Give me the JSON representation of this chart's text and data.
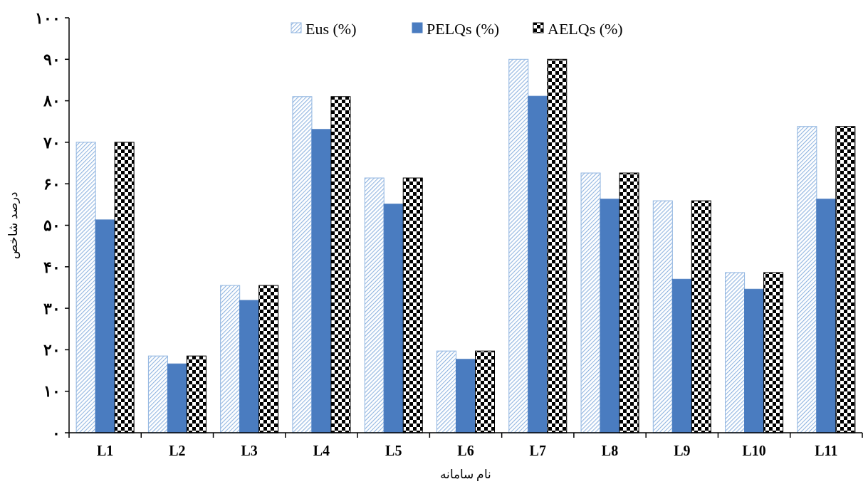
{
  "chart_data": {
    "type": "bar",
    "xlabel": "نام سامانه",
    "ylabel": "درصد شاخص",
    "categories": [
      "L1",
      "L2",
      "L3",
      "L4",
      "L5",
      "L6",
      "L7",
      "L8",
      "L9",
      "L10",
      "L11"
    ],
    "series": [
      {
        "name": "Eus (%)",
        "color": "#8fb4e0",
        "values": [
          70,
          18.5,
          35.5,
          81,
          61.4,
          19.7,
          90,
          62.6,
          55.9,
          38.6,
          73.8
        ]
      },
      {
        "name": "PELQs (%)",
        "color": "#4a7cc0",
        "values": [
          51.3,
          16.6,
          31.9,
          73.1,
          55.1,
          17.7,
          81.1,
          56.3,
          37,
          34.6,
          56.3
        ]
      },
      {
        "name": "AELQs (%)",
        "color": "#000000",
        "values": [
          70,
          18.5,
          35.5,
          81,
          61.4,
          19.7,
          90,
          62.6,
          55.9,
          38.6,
          73.8
        ]
      }
    ],
    "ylim": [
      0,
      100
    ],
    "yticks": [
      {
        "value": 0,
        "label": "۰"
      },
      {
        "value": 10,
        "label": "۱۰"
      },
      {
        "value": 20,
        "label": "۲۰"
      },
      {
        "value": 30,
        "label": "۳۰"
      },
      {
        "value": 40,
        "label": "۴۰"
      },
      {
        "value": 50,
        "label": "۵۰"
      },
      {
        "value": 60,
        "label": "۶۰"
      },
      {
        "value": 70,
        "label": "۷۰"
      },
      {
        "value": 80,
        "label": "۸۰"
      },
      {
        "value": 90,
        "label": "۹۰"
      },
      {
        "value": 100,
        "label": "۱۰۰"
      }
    ],
    "legend": "top",
    "grid": false
  }
}
